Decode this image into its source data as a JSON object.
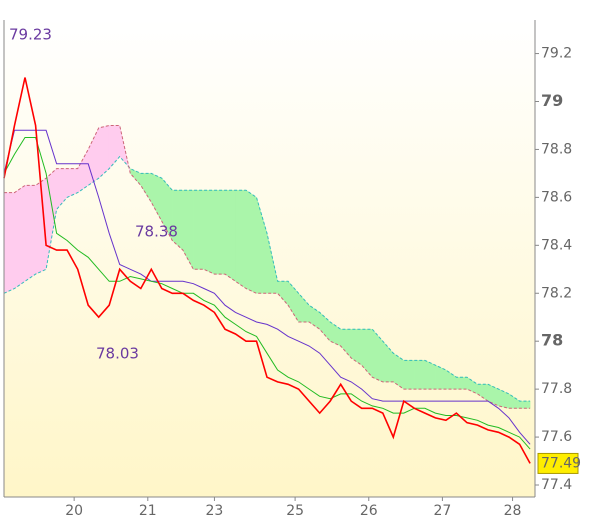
{
  "chart_data": {
    "type": "ichimoku",
    "x": [
      0,
      3,
      6,
      9,
      12,
      15,
      18,
      21,
      24,
      27,
      30,
      33,
      36,
      39,
      42,
      45,
      48,
      51,
      54,
      57,
      60,
      63,
      66,
      69,
      72,
      75,
      78,
      81,
      84,
      87,
      90,
      93,
      96,
      99,
      102,
      105,
      108,
      111,
      114,
      117,
      120,
      123,
      126,
      129,
      132,
      135,
      138,
      141,
      144,
      147,
      150
    ],
    "xlim": [
      0,
      151.4
    ],
    "xticks": [
      {
        "value": 20,
        "label": "20"
      },
      {
        "value": 41,
        "label": "21"
      },
      {
        "value": 60,
        "label": "23"
      },
      {
        "value": 83,
        "label": "25"
      },
      {
        "value": 104,
        "label": "26"
      },
      {
        "value": 125,
        "label": "27"
      },
      {
        "value": 145,
        "label": "28"
      }
    ],
    "ylim": [
      77.35,
      79.34
    ],
    "yticks": [
      77.4,
      77.6,
      77.8,
      78,
      78.2,
      78.4,
      78.6,
      78.8,
      79,
      79.2
    ],
    "series": [
      {
        "color": "#ff0000",
        "values": [
          78.68,
          78.9,
          79.1,
          78.9,
          78.4,
          78.38,
          78.38,
          78.3,
          78.15,
          78.1,
          78.15,
          78.3,
          78.25,
          78.22,
          78.3,
          78.22,
          78.2,
          78.2,
          78.17,
          78.15,
          78.12,
          78.05,
          78.03,
          78.0,
          78.0,
          77.85,
          77.83,
          77.82,
          77.8,
          77.75,
          77.7,
          77.75,
          77.82,
          77.75,
          77.72,
          77.72,
          77.7,
          77.6,
          77.75,
          77.72,
          77.7,
          77.68,
          77.67,
          77.7,
          77.66,
          77.65,
          77.63,
          77.62,
          77.6,
          77.57,
          77.49
        ]
      },
      {
        "color": "#22bb22",
        "values": [
          78.7,
          78.78,
          78.85,
          78.85,
          78.7,
          78.45,
          78.42,
          78.38,
          78.35,
          78.3,
          78.25,
          78.25,
          78.27,
          78.26,
          78.25,
          78.24,
          78.22,
          78.2,
          78.2,
          78.17,
          78.15,
          78.1,
          78.07,
          78.04,
          78.02,
          77.95,
          77.88,
          77.85,
          77.83,
          77.8,
          77.77,
          77.76,
          77.78,
          77.78,
          77.75,
          77.73,
          77.72,
          77.7,
          77.7,
          77.72,
          77.72,
          77.7,
          77.69,
          77.69,
          77.68,
          77.67,
          77.65,
          77.64,
          77.62,
          77.6,
          77.55
        ]
      },
      {
        "color": "#6633cc",
        "values": [
          78.7,
          78.88,
          78.88,
          78.88,
          78.88,
          78.74,
          78.74,
          78.74,
          78.74,
          78.6,
          78.45,
          78.32,
          78.3,
          78.28,
          78.25,
          78.25,
          78.25,
          78.25,
          78.24,
          78.22,
          78.2,
          78.15,
          78.12,
          78.1,
          78.08,
          78.07,
          78.05,
          78.02,
          78.0,
          77.98,
          77.95,
          77.9,
          77.85,
          77.83,
          77.8,
          77.76,
          77.75,
          77.75,
          77.75,
          77.75,
          77.75,
          77.75,
          77.75,
          77.75,
          77.75,
          77.75,
          77.75,
          77.72,
          77.68,
          77.62,
          77.57
        ]
      },
      {
        "color": "#33bbbb",
        "values": [
          78.2,
          78.22,
          78.25,
          78.28,
          78.3,
          78.55,
          78.6,
          78.62,
          78.65,
          78.68,
          78.72,
          78.77,
          78.72,
          78.7,
          78.7,
          78.68,
          78.63,
          78.63,
          78.63,
          78.63,
          78.63,
          78.63,
          78.63,
          78.63,
          78.6,
          78.45,
          78.25,
          78.25,
          78.2,
          78.15,
          78.12,
          78.08,
          78.05,
          78.05,
          78.05,
          78.05,
          78.0,
          77.95,
          77.92,
          77.92,
          77.92,
          77.9,
          77.88,
          77.85,
          77.85,
          77.82,
          77.82,
          77.8,
          77.78,
          77.75,
          77.75
        ]
      },
      {
        "color": "#cc6677",
        "values": [
          78.62,
          78.62,
          78.65,
          78.65,
          78.68,
          78.72,
          78.72,
          78.72,
          78.8,
          78.89,
          78.9,
          78.9,
          78.7,
          78.65,
          78.58,
          78.5,
          78.42,
          78.38,
          78.3,
          78.3,
          78.28,
          78.28,
          78.25,
          78.22,
          78.2,
          78.2,
          78.2,
          78.15,
          78.08,
          78.08,
          78.05,
          78.0,
          77.98,
          77.93,
          77.9,
          77.85,
          77.83,
          77.83,
          77.8,
          77.8,
          77.8,
          77.8,
          77.8,
          77.8,
          77.8,
          77.78,
          77.75,
          77.73,
          77.72,
          77.72,
          77.72
        ]
      }
    ],
    "cloud_colors": [
      "#aaf5aa",
      "#ffccee"
    ],
    "annotations": [
      "79.23",
      "78.38",
      "78.03"
    ],
    "last_value": 77.49
  }
}
